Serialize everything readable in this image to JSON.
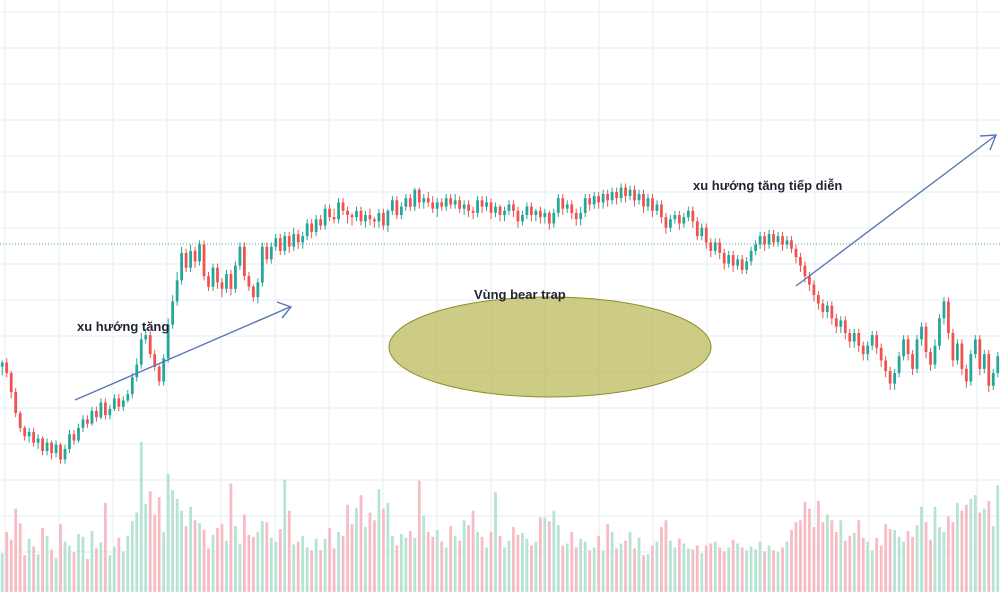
{
  "chart_data": {
    "type": "candlestick",
    "annotations": [
      {
        "text": "xu hướng tăng"
      },
      {
        "text": "Vùng bear trap"
      },
      {
        "text": "xu hướng tăng tiếp diễn"
      }
    ],
    "colors": {
      "up": "#26a69a",
      "down": "#ef5350",
      "up_volume": "#b6e3d3",
      "down_volume": "#f7bcc3",
      "grid": "#e6edf3",
      "trend_arrow": "#5a78b4",
      "trap_fill": "#b5b44a",
      "trap_stroke": "#8f8d2c",
      "price_line": "#4aa89a"
    },
    "grid": true,
    "price_line": true,
    "candles": [
      [
        411,
        409,
        415,
        408,
        40
      ],
      [
        409,
        414,
        416,
        407,
        62
      ],
      [
        414,
        423,
        426,
        413,
        54
      ],
      [
        423,
        433,
        435,
        421,
        86
      ],
      [
        433,
        440,
        442,
        432,
        71
      ],
      [
        440,
        444,
        446,
        439,
        38
      ],
      [
        444,
        442,
        447,
        440,
        55
      ],
      [
        442,
        447,
        449,
        440,
        47
      ],
      [
        447,
        445,
        450,
        443,
        39
      ],
      [
        445,
        451,
        453,
        444,
        66
      ],
      [
        451,
        447,
        453,
        445,
        58
      ],
      [
        447,
        452,
        455,
        446,
        44
      ],
      [
        452,
        448,
        454,
        446,
        35
      ],
      [
        448,
        455,
        457,
        447,
        70
      ],
      [
        455,
        450,
        457,
        448,
        52
      ],
      [
        450,
        443,
        452,
        441,
        48
      ],
      [
        443,
        446,
        448,
        441,
        41
      ],
      [
        446,
        440,
        447,
        438,
        60
      ],
      [
        440,
        436,
        442,
        434,
        57
      ],
      [
        436,
        438,
        440,
        434,
        34
      ],
      [
        438,
        432,
        439,
        430,
        63
      ],
      [
        432,
        435,
        437,
        430,
        45
      ],
      [
        435,
        428,
        436,
        426,
        51
      ],
      [
        428,
        434,
        436,
        426,
        92
      ],
      [
        434,
        431,
        436,
        429,
        38
      ],
      [
        431,
        426,
        432,
        424,
        47
      ],
      [
        426,
        430,
        432,
        424,
        56
      ],
      [
        430,
        427,
        432,
        425,
        42
      ],
      [
        427,
        424,
        428,
        422,
        58
      ],
      [
        424,
        416,
        426,
        414,
        73
      ],
      [
        416,
        410,
        418,
        407,
        82
      ],
      [
        410,
        398,
        412,
        395,
        155
      ],
      [
        398,
        396,
        400,
        393,
        91
      ],
      [
        396,
        405,
        407,
        394,
        104
      ],
      [
        405,
        411,
        413,
        403,
        80
      ],
      [
        411,
        418,
        420,
        410,
        98
      ],
      [
        418,
        407,
        420,
        405,
        62
      ],
      [
        407,
        391,
        409,
        388,
        122
      ],
      [
        391,
        380,
        393,
        377,
        105
      ],
      [
        380,
        370,
        382,
        366,
        96
      ],
      [
        370,
        357,
        372,
        354,
        84
      ],
      [
        357,
        364,
        366,
        355,
        68
      ],
      [
        364,
        356,
        366,
        353,
        88
      ],
      [
        356,
        361,
        364,
        354,
        74
      ],
      [
        361,
        353,
        363,
        351,
        71
      ],
      [
        353,
        368,
        370,
        351,
        64
      ],
      [
        368,
        373,
        375,
        366,
        45
      ],
      [
        373,
        364,
        375,
        362,
        59
      ],
      [
        364,
        371,
        374,
        362,
        66
      ],
      [
        371,
        374,
        378,
        369,
        70
      ],
      [
        374,
        367,
        376,
        365,
        53
      ],
      [
        367,
        374,
        377,
        365,
        112
      ],
      [
        374,
        363,
        376,
        361,
        68
      ],
      [
        363,
        354,
        365,
        352,
        50
      ],
      [
        354,
        368,
        370,
        352,
        80
      ],
      [
        368,
        373,
        375,
        366,
        59
      ],
      [
        373,
        378,
        380,
        372,
        57
      ],
      [
        378,
        371,
        381,
        369,
        62
      ],
      [
        371,
        354,
        373,
        352,
        73
      ],
      [
        354,
        360,
        362,
        352,
        72
      ],
      [
        360,
        354,
        362,
        352,
        56
      ],
      [
        354,
        350,
        356,
        348,
        52
      ],
      [
        350,
        356,
        358,
        348,
        65
      ],
      [
        356,
        349,
        358,
        347,
        116
      ],
      [
        349,
        354,
        357,
        347,
        84
      ],
      [
        354,
        348,
        356,
        345,
        49
      ],
      [
        348,
        352,
        355,
        346,
        52
      ],
      [
        352,
        349,
        355,
        347,
        58
      ],
      [
        349,
        343,
        351,
        341,
        46
      ],
      [
        343,
        347,
        350,
        341,
        43
      ],
      [
        347,
        341,
        349,
        339,
        55
      ],
      [
        341,
        344,
        346,
        339,
        43
      ],
      [
        344,
        336,
        346,
        334,
        55
      ],
      [
        336,
        340,
        342,
        334,
        66
      ],
      [
        340,
        341,
        343,
        336,
        45
      ],
      [
        341,
        333,
        343,
        331,
        62
      ],
      [
        333,
        337,
        339,
        331,
        58
      ],
      [
        337,
        339,
        343,
        335,
        90
      ],
      [
        339,
        340,
        344,
        338,
        70
      ],
      [
        340,
        337,
        342,
        335,
        87
      ],
      [
        337,
        342,
        344,
        335,
        100
      ],
      [
        342,
        339,
        345,
        337,
        67
      ],
      [
        339,
        341,
        344,
        336,
        82
      ],
      [
        341,
        342,
        345,
        340,
        74
      ],
      [
        342,
        338,
        345,
        336,
        106
      ],
      [
        338,
        344,
        346,
        336,
        86
      ],
      [
        344,
        337,
        347,
        336,
        92
      ],
      [
        337,
        332,
        339,
        330,
        58
      ],
      [
        332,
        339,
        341,
        330,
        48
      ],
      [
        339,
        335,
        341,
        333,
        60
      ],
      [
        335,
        331,
        337,
        329,
        56
      ],
      [
        331,
        335,
        337,
        329,
        63
      ],
      [
        335,
        327,
        337,
        326,
        56
      ],
      [
        327,
        333,
        336,
        326,
        115
      ],
      [
        333,
        331,
        336,
        329,
        79
      ],
      [
        331,
        333,
        335,
        328,
        62
      ],
      [
        333,
        336,
        338,
        330,
        57
      ],
      [
        336,
        333,
        340,
        331,
        64
      ],
      [
        333,
        335,
        337,
        331,
        52
      ],
      [
        335,
        331,
        337,
        329,
        46
      ],
      [
        331,
        334,
        336,
        329,
        68
      ],
      [
        334,
        332,
        336,
        329,
        58
      ],
      [
        332,
        336,
        338,
        330,
        53
      ],
      [
        336,
        334,
        339,
        332,
        74
      ],
      [
        334,
        337,
        340,
        332,
        69
      ],
      [
        337,
        338,
        341,
        335,
        84
      ],
      [
        338,
        332,
        340,
        330,
        62
      ],
      [
        332,
        335,
        338,
        330,
        57
      ],
      [
        335,
        333,
        337,
        330,
        46
      ],
      [
        333,
        338,
        341,
        331,
        62
      ],
      [
        338,
        335,
        340,
        333,
        103
      ],
      [
        335,
        339,
        342,
        334,
        58
      ],
      [
        339,
        337,
        342,
        335,
        46
      ],
      [
        337,
        334,
        339,
        332,
        53
      ],
      [
        334,
        337,
        340,
        332,
        67
      ],
      [
        337,
        342,
        345,
        335,
        59
      ],
      [
        342,
        339,
        344,
        337,
        61
      ],
      [
        339,
        335,
        341,
        333,
        55
      ],
      [
        335,
        339,
        342,
        333,
        48
      ],
      [
        339,
        337,
        342,
        336,
        52
      ],
      [
        337,
        340,
        343,
        335,
        77
      ],
      [
        340,
        338,
        343,
        336,
        77
      ],
      [
        338,
        343,
        346,
        337,
        73
      ],
      [
        343,
        338,
        345,
        336,
        84
      ],
      [
        338,
        331,
        340,
        329,
        69
      ],
      [
        331,
        336,
        339,
        329,
        48
      ],
      [
        336,
        334,
        338,
        332,
        50
      ],
      [
        334,
        338,
        341,
        332,
        62
      ],
      [
        338,
        341,
        344,
        336,
        46
      ],
      [
        341,
        338,
        344,
        335,
        55
      ],
      [
        338,
        331,
        340,
        329,
        52
      ],
      [
        331,
        334,
        337,
        329,
        43
      ],
      [
        334,
        330,
        336,
        328,
        46
      ],
      [
        330,
        333,
        336,
        328,
        58
      ],
      [
        333,
        329,
        336,
        327,
        43
      ],
      [
        329,
        332,
        335,
        327,
        70
      ],
      [
        332,
        328,
        334,
        326,
        62
      ],
      [
        328,
        331,
        334,
        326,
        45
      ],
      [
        331,
        326,
        333,
        324,
        50
      ],
      [
        326,
        330,
        333,
        324,
        53
      ],
      [
        330,
        327,
        332,
        325,
        62
      ],
      [
        327,
        332,
        335,
        325,
        45
      ],
      [
        332,
        329,
        334,
        327,
        56
      ],
      [
        329,
        335,
        338,
        327,
        38
      ],
      [
        335,
        331,
        337,
        329,
        39
      ],
      [
        331,
        337,
        340,
        329,
        48
      ],
      [
        337,
        334,
        339,
        332,
        52
      ],
      [
        334,
        340,
        343,
        332,
        67
      ],
      [
        340,
        345,
        348,
        338,
        74
      ],
      [
        345,
        341,
        347,
        339,
        53
      ],
      [
        341,
        339,
        343,
        337,
        46
      ],
      [
        339,
        343,
        346,
        337,
        55
      ],
      [
        343,
        340,
        345,
        338,
        50
      ],
      [
        340,
        337,
        342,
        335,
        45
      ],
      [
        337,
        342,
        345,
        335,
        44
      ],
      [
        342,
        349,
        351,
        340,
        48
      ],
      [
        349,
        345,
        351,
        343,
        40
      ],
      [
        345,
        352,
        355,
        343,
        48
      ],
      [
        352,
        356,
        359,
        350,
        50
      ],
      [
        356,
        352,
        358,
        350,
        52
      ],
      [
        352,
        357,
        360,
        350,
        46
      ],
      [
        357,
        362,
        365,
        355,
        42
      ],
      [
        362,
        358,
        364,
        356,
        46
      ],
      [
        358,
        363,
        366,
        356,
        54
      ],
      [
        363,
        360,
        365,
        358,
        50
      ],
      [
        360,
        365,
        367,
        358,
        46
      ],
      [
        365,
        361,
        367,
        359,
        43
      ],
      [
        361,
        356,
        363,
        354,
        47
      ],
      [
        356,
        353,
        358,
        351,
        44
      ],
      [
        353,
        349,
        355,
        347,
        52
      ],
      [
        349,
        353,
        356,
        347,
        42
      ],
      [
        353,
        348,
        355,
        346,
        48
      ],
      [
        348,
        352,
        354,
        346,
        43
      ],
      [
        352,
        349,
        354,
        347,
        41
      ],
      [
        349,
        353,
        356,
        347,
        46
      ],
      [
        353,
        351,
        355,
        349,
        52
      ],
      [
        351,
        355,
        357,
        349,
        64
      ],
      [
        355,
        359,
        362,
        353,
        72
      ],
      [
        359,
        363,
        366,
        357,
        74
      ],
      [
        363,
        368,
        371,
        361,
        93
      ],
      [
        368,
        372,
        375,
        366,
        86
      ],
      [
        372,
        377,
        380,
        370,
        67
      ],
      [
        377,
        381,
        384,
        375,
        94
      ],
      [
        381,
        385,
        388,
        379,
        72
      ],
      [
        385,
        382,
        388,
        380,
        80
      ],
      [
        382,
        388,
        391,
        380,
        74
      ],
      [
        388,
        392,
        395,
        386,
        62
      ],
      [
        392,
        389,
        395,
        387,
        74
      ],
      [
        389,
        395,
        398,
        387,
        53
      ],
      [
        395,
        399,
        402,
        393,
        58
      ],
      [
        399,
        395,
        402,
        393,
        61
      ],
      [
        395,
        401,
        404,
        393,
        74
      ],
      [
        401,
        405,
        408,
        399,
        56
      ],
      [
        405,
        401,
        408,
        399,
        52
      ],
      [
        401,
        396,
        403,
        394,
        43
      ],
      [
        396,
        402,
        405,
        394,
        56
      ],
      [
        402,
        408,
        411,
        400,
        48
      ],
      [
        408,
        413,
        416,
        406,
        70
      ],
      [
        413,
        419,
        422,
        411,
        65
      ],
      [
        419,
        414,
        422,
        412,
        64
      ],
      [
        414,
        406,
        416,
        404,
        57
      ],
      [
        406,
        398,
        408,
        396,
        52
      ],
      [
        398,
        405,
        408,
        396,
        63
      ],
      [
        405,
        412,
        415,
        403,
        57
      ],
      [
        412,
        398,
        414,
        396,
        69
      ],
      [
        398,
        392,
        401,
        390,
        88
      ],
      [
        392,
        404,
        407,
        390,
        72
      ],
      [
        404,
        410,
        413,
        402,
        54
      ],
      [
        410,
        401,
        412,
        398,
        88
      ],
      [
        401,
        388,
        403,
        386,
        67
      ],
      [
        388,
        380,
        391,
        378,
        62
      ],
      [
        380,
        395,
        398,
        378,
        78
      ],
      [
        395,
        408,
        411,
        393,
        72
      ],
      [
        408,
        400,
        410,
        398,
        92
      ],
      [
        400,
        412,
        415,
        398,
        84
      ],
      [
        412,
        418,
        421,
        410,
        90
      ],
      [
        418,
        405,
        420,
        403,
        96
      ],
      [
        405,
        398,
        407,
        396,
        100
      ],
      [
        398,
        412,
        415,
        396,
        82
      ],
      [
        412,
        405,
        414,
        403,
        86
      ],
      [
        405,
        420,
        423,
        403,
        94
      ],
      [
        420,
        414,
        422,
        412,
        68
      ],
      [
        414,
        406,
        416,
        404,
        110
      ]
    ]
  }
}
